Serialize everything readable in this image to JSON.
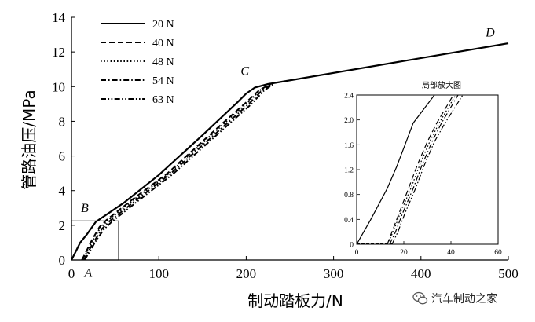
{
  "chart_data": {
    "type": "line",
    "xlabel": "制动踏板力/N",
    "ylabel": "管路油压/MPa",
    "xlim": [
      0,
      500
    ],
    "ylim": [
      0,
      14
    ],
    "x_ticks": [
      "0",
      "100",
      "200",
      "300",
      "400",
      "500"
    ],
    "y_ticks": [
      "0",
      "2",
      "4",
      "6",
      "8",
      "10",
      "12",
      "14"
    ],
    "grid": false,
    "legend_position": "top-left",
    "series": [
      {
        "name": "20 N",
        "style": "solid",
        "points": [
          [
            0,
            0
          ],
          [
            5,
            0.5
          ],
          [
            10,
            1.0
          ],
          [
            18,
            1.5
          ],
          [
            28,
            2.2
          ],
          [
            60,
            3.3
          ],
          [
            100,
            4.9
          ],
          [
            150,
            7.2
          ],
          [
            190,
            9.1
          ],
          [
            200,
            9.6
          ],
          [
            210,
            9.95
          ],
          [
            225,
            10.15
          ],
          [
            500,
            12.5
          ]
        ]
      },
      {
        "name": "40 N",
        "style": "dash",
        "points": [
          [
            12,
            0
          ],
          [
            18,
            0.6
          ],
          [
            24,
            1.2
          ],
          [
            32,
            1.9
          ],
          [
            40,
            2.3
          ],
          [
            70,
            3.5
          ],
          [
            110,
            5.0
          ],
          [
            160,
            7.3
          ],
          [
            200,
            9.1
          ],
          [
            215,
            9.8
          ],
          [
            228,
            10.15
          ]
        ]
      },
      {
        "name": "48 N",
        "style": "dot",
        "points": [
          [
            13,
            0
          ],
          [
            19,
            0.6
          ],
          [
            25,
            1.2
          ],
          [
            33,
            1.85
          ],
          [
            42,
            2.3
          ],
          [
            72,
            3.5
          ],
          [
            112,
            5.0
          ],
          [
            162,
            7.3
          ],
          [
            202,
            9.1
          ],
          [
            216,
            9.8
          ],
          [
            229,
            10.15
          ]
        ]
      },
      {
        "name": "54 N",
        "style": "dashdot",
        "points": [
          [
            14,
            0
          ],
          [
            20,
            0.55
          ],
          [
            27,
            1.15
          ],
          [
            35,
            1.8
          ],
          [
            44,
            2.25
          ],
          [
            74,
            3.45
          ],
          [
            114,
            5.0
          ],
          [
            164,
            7.25
          ],
          [
            204,
            9.05
          ],
          [
            218,
            9.78
          ],
          [
            230,
            10.15
          ]
        ]
      },
      {
        "name": "63 N",
        "style": "dashdotdot",
        "points": [
          [
            15,
            0
          ],
          [
            21,
            0.5
          ],
          [
            28,
            1.1
          ],
          [
            37,
            1.75
          ],
          [
            46,
            2.2
          ],
          [
            76,
            3.4
          ],
          [
            116,
            4.95
          ],
          [
            166,
            7.2
          ],
          [
            206,
            9.0
          ],
          [
            220,
            9.75
          ],
          [
            231,
            10.15
          ]
        ]
      }
    ],
    "annotations": [
      {
        "text": "A",
        "x": 12,
        "y": -0.2
      },
      {
        "text": "B",
        "x": 26,
        "y": 2.4
      },
      {
        "text": "C",
        "x": 203,
        "y": 10.3
      },
      {
        "text": "D",
        "x": 490,
        "y": 12.7
      }
    ],
    "highlight_box": {
      "xlim": [
        0,
        54
      ],
      "ylim": [
        0,
        2.25
      ]
    },
    "inset": {
      "title": "局部放大图",
      "xlim": [
        0,
        60
      ],
      "ylim": [
        0,
        2.4
      ],
      "x_ticks": [
        "0",
        "20",
        "40",
        "60"
      ],
      "y_ticks": [
        "0",
        "0.4",
        "0.8",
        "1.2",
        "1.6",
        "2.0",
        "2.4"
      ],
      "series": [
        {
          "name": "20 N",
          "style": "solid",
          "points": [
            [
              0,
              0
            ],
            [
              6,
              0.4
            ],
            [
              13,
              0.9
            ],
            [
              17,
              1.25
            ],
            [
              20,
              1.55
            ],
            [
              24,
              1.95
            ],
            [
              33,
              2.4
            ]
          ]
        },
        {
          "name": "40 N",
          "style": "dash",
          "points": [
            [
              13,
              0
            ],
            [
              15,
              0.2
            ],
            [
              18,
              0.5
            ],
            [
              22,
              0.9
            ],
            [
              26,
              1.3
            ],
            [
              30,
              1.65
            ],
            [
              34,
              1.95
            ],
            [
              41,
              2.4
            ]
          ]
        },
        {
          "name": "48 N",
          "style": "dot",
          "points": [
            [
              13,
              0
            ],
            [
              15.5,
              0.2
            ],
            [
              18.5,
              0.5
            ],
            [
              23,
              0.9
            ],
            [
              27,
              1.3
            ],
            [
              31,
              1.65
            ],
            [
              35,
              1.95
            ],
            [
              42,
              2.4
            ]
          ]
        },
        {
          "name": "54 N",
          "style": "dashdot",
          "points": [
            [
              14,
              0
            ],
            [
              16.5,
              0.2
            ],
            [
              19.5,
              0.5
            ],
            [
              24,
              0.9
            ],
            [
              28,
              1.3
            ],
            [
              32,
              1.65
            ],
            [
              36,
              1.95
            ],
            [
              43,
              2.4
            ]
          ]
        },
        {
          "name": "63 N",
          "style": "dashdotdot",
          "points": [
            [
              15,
              0
            ],
            [
              17.5,
              0.2
            ],
            [
              20.5,
              0.5
            ],
            [
              25,
              0.9
            ],
            [
              29,
              1.3
            ],
            [
              33,
              1.65
            ],
            [
              37.5,
              1.95
            ],
            [
              45,
              2.4
            ]
          ]
        }
      ]
    }
  },
  "watermark": {
    "text": "汽车制动之家",
    "icon": "wechat-icon"
  }
}
